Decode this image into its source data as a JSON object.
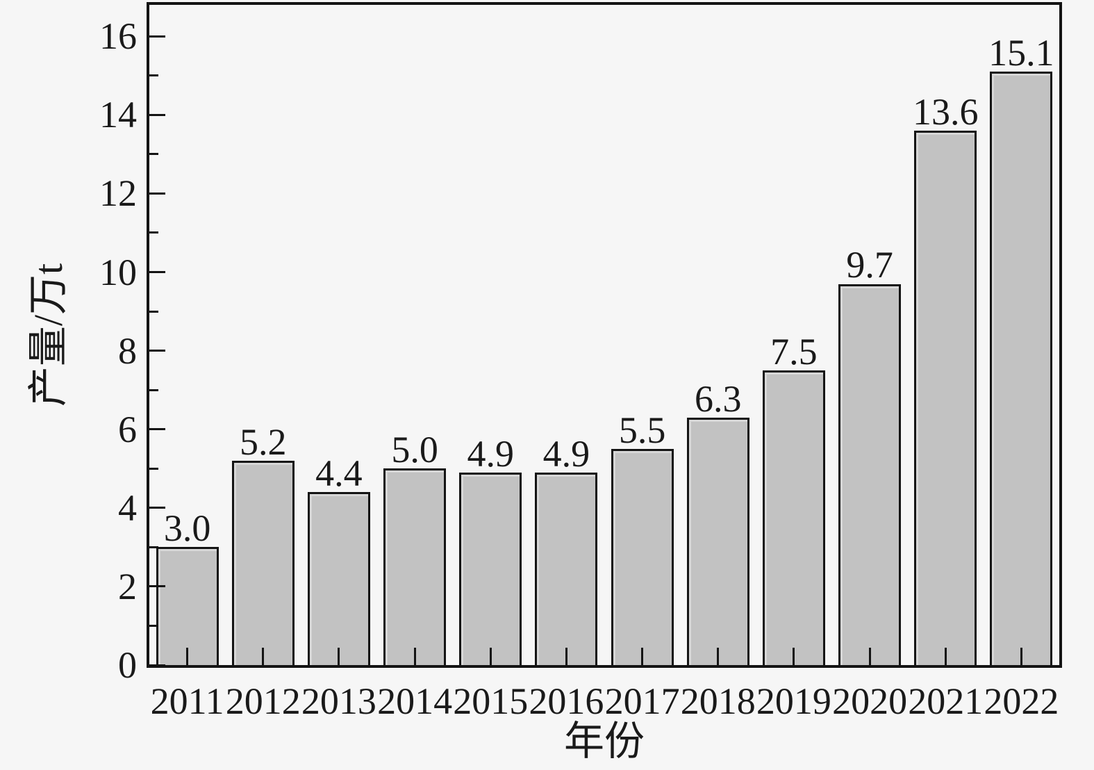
{
  "chart_data": {
    "type": "bar",
    "title": "",
    "categories": [
      "2011",
      "2012",
      "2013",
      "2014",
      "2015",
      "2016",
      "2017",
      "2018",
      "2019",
      "2020",
      "2021",
      "2022"
    ],
    "values": [
      3.0,
      5.2,
      4.4,
      5.0,
      4.9,
      4.9,
      5.5,
      6.3,
      7.5,
      9.7,
      13.6,
      15.1
    ],
    "value_labels": [
      "3.0",
      "5.2",
      "4.4",
      "5.0",
      "4.9",
      "4.9",
      "5.5",
      "6.3",
      "7.5",
      "9.7",
      "13.6",
      "15.1"
    ],
    "xlabel": "年份",
    "ylabel": "产量/万t",
    "ylim": [
      0,
      16.8
    ],
    "yticks": [
      0,
      2,
      4,
      6,
      8,
      10,
      12,
      14,
      16
    ],
    "yticks_minor": [
      1,
      3,
      5,
      7,
      9,
      11,
      13,
      15
    ],
    "grid": false,
    "legend": false,
    "tick_direction": "in",
    "colors": {
      "bar_fill": "#c2c2c2",
      "bar_border": "#141414",
      "axis": "#141414",
      "background": "#f6f6f6",
      "text": "#1a1a1a"
    }
  }
}
